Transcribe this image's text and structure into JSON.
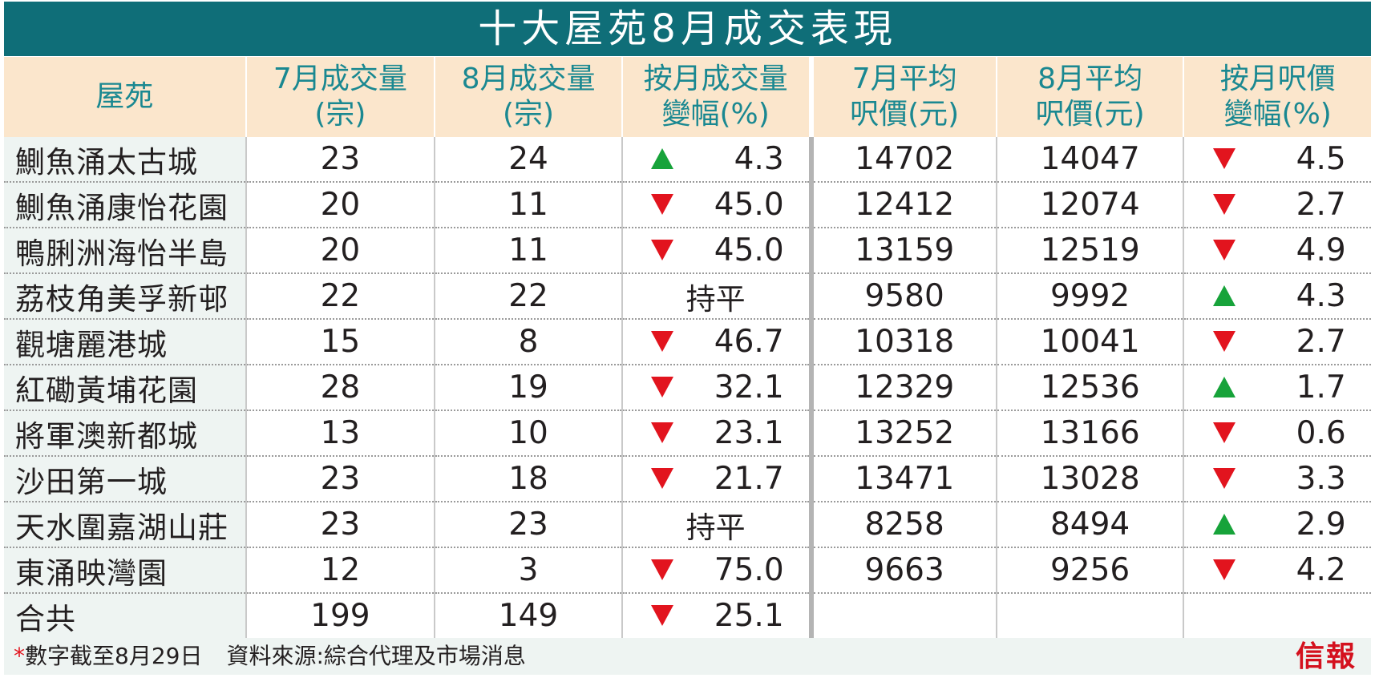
{
  "title": "十大屋苑8月成交表現",
  "headers": {
    "estate": "屋苑",
    "jul_volume": [
      "7月成交量",
      "(宗)"
    ],
    "aug_volume": [
      "8月成交量",
      "(宗)"
    ],
    "volume_change": [
      "按月成交量",
      "變幅(%)"
    ],
    "jul_price": [
      "7月平均",
      "呎價(元)"
    ],
    "aug_price": [
      "8月平均",
      "呎價(元)"
    ],
    "price_change": [
      "按月呎價",
      "變幅(%)"
    ]
  },
  "rows": [
    {
      "estate": "鰂魚涌太古城",
      "jul_volume": "23",
      "aug_volume": "24",
      "volume_change": {
        "dir": "up",
        "value": "4.3"
      },
      "jul_price": "14702",
      "aug_price": "14047",
      "price_change": {
        "dir": "down",
        "value": "4.5"
      }
    },
    {
      "estate": "鰂魚涌康怡花園",
      "jul_volume": "20",
      "aug_volume": "11",
      "volume_change": {
        "dir": "down",
        "value": "45.0"
      },
      "jul_price": "12412",
      "aug_price": "12074",
      "price_change": {
        "dir": "down",
        "value": "2.7"
      }
    },
    {
      "estate": "鴨脷洲海怡半島",
      "jul_volume": "20",
      "aug_volume": "11",
      "volume_change": {
        "dir": "down",
        "value": "45.0"
      },
      "jul_price": "13159",
      "aug_price": "12519",
      "price_change": {
        "dir": "down",
        "value": "4.9"
      }
    },
    {
      "estate": "荔枝角美孚新邨",
      "jul_volume": "22",
      "aug_volume": "22",
      "volume_change": {
        "dir": "flat",
        "value": "持平"
      },
      "jul_price": "9580",
      "aug_price": "9992",
      "price_change": {
        "dir": "up",
        "value": "4.3"
      }
    },
    {
      "estate": "觀塘麗港城",
      "jul_volume": "15",
      "aug_volume": "8",
      "volume_change": {
        "dir": "down",
        "value": "46.7"
      },
      "jul_price": "10318",
      "aug_price": "10041",
      "price_change": {
        "dir": "down",
        "value": "2.7"
      }
    },
    {
      "estate": "紅磡黃埔花園",
      "jul_volume": "28",
      "aug_volume": "19",
      "volume_change": {
        "dir": "down",
        "value": "32.1"
      },
      "jul_price": "12329",
      "aug_price": "12536",
      "price_change": {
        "dir": "up",
        "value": "1.7"
      }
    },
    {
      "estate": "將軍澳新都城",
      "jul_volume": "13",
      "aug_volume": "10",
      "volume_change": {
        "dir": "down",
        "value": "23.1"
      },
      "jul_price": "13252",
      "aug_price": "13166",
      "price_change": {
        "dir": "down",
        "value": "0.6"
      }
    },
    {
      "estate": "沙田第一城",
      "jul_volume": "23",
      "aug_volume": "18",
      "volume_change": {
        "dir": "down",
        "value": "21.7"
      },
      "jul_price": "13471",
      "aug_price": "13028",
      "price_change": {
        "dir": "down",
        "value": "3.3"
      }
    },
    {
      "estate": "天水圍嘉湖山莊",
      "jul_volume": "23",
      "aug_volume": "23",
      "volume_change": {
        "dir": "flat",
        "value": "持平"
      },
      "jul_price": "8258",
      "aug_price": "8494",
      "price_change": {
        "dir": "up",
        "value": "2.9"
      }
    },
    {
      "estate": "東涌映灣園",
      "jul_volume": "12",
      "aug_volume": "3",
      "volume_change": {
        "dir": "down",
        "value": "75.0"
      },
      "jul_price": "9663",
      "aug_price": "9256",
      "price_change": {
        "dir": "down",
        "value": "4.2"
      }
    }
  ],
  "total": {
    "estate": "合共",
    "jul_volume": "199",
    "aug_volume": "149",
    "volume_change": {
      "dir": "down",
      "value": "25.1"
    }
  },
  "footer": {
    "asterisk": "*",
    "note": "數字截至8月29日",
    "source": "資料來源:綜合代理及市場消息"
  },
  "brand": "信報",
  "colors": {
    "title_bg": "#0f6e78",
    "header_bg": "#fbe6cc",
    "header_text": "#1a8891",
    "up": "#17a33a",
    "down": "#e2141e",
    "estate_bg": "#eef4f2"
  }
}
